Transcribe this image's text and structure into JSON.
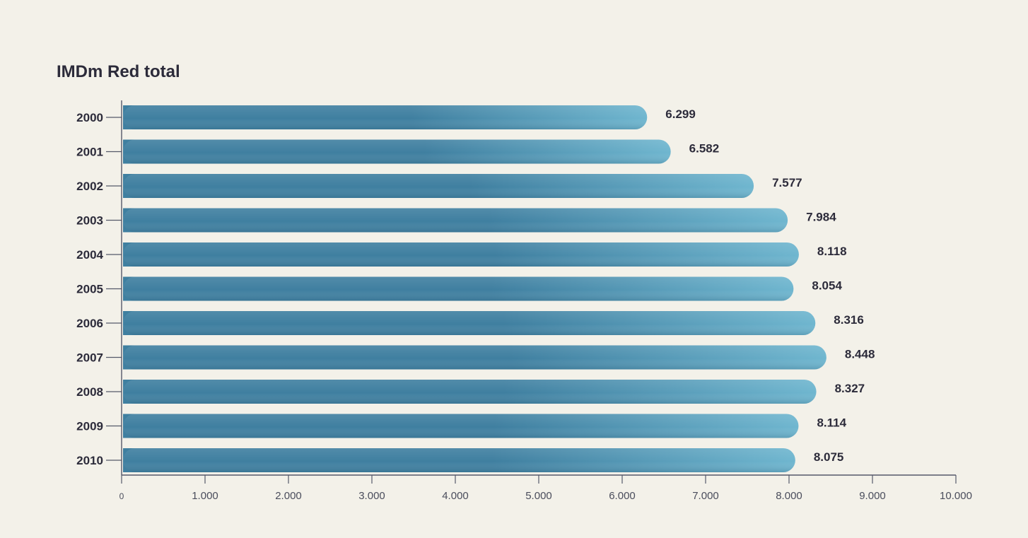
{
  "chart_data": {
    "type": "bar",
    "orientation": "horizontal",
    "title": "IMDm Red total",
    "xlabel": "",
    "ylabel": "",
    "categories": [
      "2000",
      "2001",
      "2002",
      "2003",
      "2004",
      "2005",
      "2006",
      "2007",
      "2008",
      "2009",
      "2010"
    ],
    "values": [
      6299,
      6582,
      7577,
      7984,
      8118,
      8054,
      8316,
      8448,
      8327,
      8114,
      8075
    ],
    "value_labels": [
      "6.299",
      "6.582",
      "7.577",
      "7.984",
      "8.118",
      "8.054",
      "8.316",
      "8.448",
      "8.327",
      "8.114",
      "8.075"
    ],
    "xlim": [
      0,
      10000
    ],
    "xticks": [
      0,
      1000,
      2000,
      3000,
      4000,
      5000,
      6000,
      7000,
      8000,
      9000,
      10000
    ],
    "xtick_labels": [
      "0",
      "1.000",
      "2.000",
      "3.000",
      "4.000",
      "5.000",
      "6.000",
      "7.000",
      "8.000",
      "9.000",
      "10.000"
    ],
    "grid": false,
    "legend": "none",
    "colors": {
      "bar_dark": "#3f7fa0",
      "bar_light": "#6fb6cf",
      "text": "#2c2b3a",
      "axis": "#55596a",
      "background": "#f3f1e9"
    }
  }
}
